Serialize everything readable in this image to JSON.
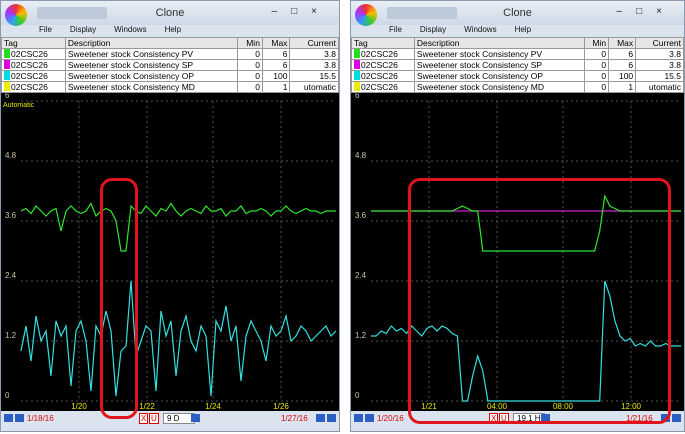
{
  "windows": [
    {
      "title": "Clone",
      "menu": [
        "File",
        "Display",
        "Windows",
        "Help"
      ],
      "table": {
        "header": [
          "Tag",
          "Description",
          "Min",
          "Max",
          "Current"
        ],
        "colors": [
          "#22dd22",
          "#dd00dd",
          "#00dddd",
          "#eeee00"
        ],
        "rows": [
          [
            "02CSC26",
            "Sweetener stock Consistency PV",
            "0",
            "6",
            "3.8"
          ],
          [
            "02CSC26",
            "Sweetener stock Consistency SP",
            "0",
            "6",
            "3.8"
          ],
          [
            "02CSC26",
            "Sweetener stock Consistency OP",
            "0",
            "100",
            "15.5"
          ],
          [
            "02CSC26",
            "Sweetener stock Consistency MD",
            "0",
            "1",
            "utomatic"
          ]
        ]
      },
      "chart_data": {
        "type": "line",
        "annotation": "Automatic",
        "ylim": [
          0,
          6
        ],
        "yticks": [
          0,
          1.2,
          2.4,
          3.6,
          4.8,
          6
        ],
        "xtick_labels": [
          "1/20",
          "1/22",
          "1/24",
          "1/26"
        ],
        "series": [
          {
            "color": "#2ee62e",
            "values": [
              3.8,
              3.85,
              3.75,
              3.9,
              3.8,
              3.7,
              3.8,
              3.85,
              3.4,
              3.8,
              3.9,
              3.8,
              3.75,
              3.8,
              3.95,
              3.7,
              3.8,
              3.85,
              3.8,
              3.6,
              3.0,
              3.0,
              3.9,
              3.8,
              3.75,
              3.9,
              3.8,
              3.7,
              3.85,
              3.8,
              3.95,
              3.8,
              3.7,
              3.8,
              3.85,
              3.8,
              3.75,
              3.9,
              3.8,
              3.8,
              3.85,
              3.7,
              3.8,
              3.8,
              3.9,
              3.75,
              3.8,
              3.8,
              3.85,
              3.8,
              3.7,
              3.8,
              3.8,
              3.9,
              3.8,
              3.75,
              3.8,
              3.85,
              3.8,
              3.8,
              3.75,
              3.8,
              3.8,
              3.8
            ]
          },
          {
            "color": "#33e0e0",
            "values": [
              1.0,
              1.5,
              0.8,
              1.7,
              1.2,
              1.4,
              0.5,
              1.6,
              1.3,
              1.5,
              0.3,
              1.4,
              1.6,
              1.2,
              0.2,
              1.5,
              1.3,
              1.8,
              1.4,
              0.1,
              1.0,
              1.1,
              2.4,
              0.9,
              1.2,
              1.5,
              1.4,
              0.2,
              1.8,
              1.3,
              1.6,
              0.5,
              1.4,
              1.7,
              1.2,
              1.0,
              1.5,
              1.3,
              0.1,
              1.6,
              1.4,
              1.9,
              1.2,
              1.5,
              0.4,
              1.3,
              1.6,
              1.4,
              1.2,
              0.8,
              1.5,
              1.3,
              1.4,
              1.7,
              1.2,
              1.3,
              1.5,
              1.4,
              1.2,
              1.3,
              1.4,
              1.5,
              1.3,
              1.4
            ]
          }
        ]
      },
      "footer": {
        "start": "1/18/16",
        "x": "X",
        "u": "U",
        "span": "9 D",
        "end": "1/27/16"
      }
    },
    {
      "title": "Clone",
      "menu": [
        "File",
        "Display",
        "Windows",
        "Help"
      ],
      "table": {
        "header": [
          "Tag",
          "Description",
          "Min",
          "Max",
          "Current"
        ],
        "colors": [
          "#22dd22",
          "#dd00dd",
          "#00dddd",
          "#eeee00"
        ],
        "rows": [
          [
            "02CSC26",
            "Sweetener stock Consistency PV",
            "0",
            "6",
            "3.8"
          ],
          [
            "02CSC26",
            "Sweetener stock Consistency SP",
            "0",
            "6",
            "3.8"
          ],
          [
            "02CSC26",
            "Sweetener stock Consistency OP",
            "0",
            "100",
            "15.5"
          ],
          [
            "02CSC26",
            "Sweetener stock Consistency MD",
            "0",
            "1",
            "utomatic"
          ]
        ]
      },
      "chart_data": {
        "type": "line",
        "ylim": [
          0,
          6
        ],
        "yticks": [
          0,
          1.2,
          2.4,
          3.6,
          4.8,
          6
        ],
        "xtick_labels": [
          "1/21",
          "04:00",
          "08:00",
          "12:00"
        ],
        "series": [
          {
            "color": "#cc22cc",
            "values": [
              3.8,
              3.8,
              3.8,
              3.8,
              3.8,
              3.8,
              3.8,
              3.8,
              3.8,
              3.8,
              3.8,
              3.8,
              3.8,
              3.8,
              3.8,
              3.8,
              3.8,
              3.8,
              3.8,
              3.8,
              3.8,
              3.8,
              3.8,
              3.8,
              3.8,
              3.8,
              3.8,
              3.8,
              3.8,
              3.8,
              3.8,
              3.8,
              3.8,
              3.8,
              3.8,
              3.8,
              3.8,
              3.8,
              3.8,
              3.8,
              3.8,
              3.8,
              3.8,
              3.8,
              3.8,
              3.8,
              3.8,
              3.8,
              3.8,
              3.8,
              3.8,
              3.8,
              3.8,
              3.8,
              3.8,
              3.8,
              3.8,
              3.8,
              3.8,
              3.8,
              3.8,
              3.8
            ]
          },
          {
            "color": "#2ee62e",
            "values": [
              3.8,
              3.8,
              3.8,
              3.8,
              3.8,
              3.8,
              3.8,
              3.8,
              3.8,
              3.8,
              3.8,
              3.8,
              3.8,
              3.8,
              3.8,
              3.8,
              3.8,
              3.85,
              3.9,
              3.85,
              3.8,
              3.8,
              3.0,
              3.0,
              3.0,
              3.0,
              3.0,
              3.0,
              3.0,
              3.0,
              3.0,
              3.0,
              3.0,
              3.0,
              3.0,
              3.0,
              3.0,
              3.0,
              3.0,
              3.0,
              3.0,
              3.0,
              3.0,
              3.0,
              3.0,
              3.4,
              4.1,
              3.9,
              3.85,
              3.8,
              3.8,
              3.8,
              3.8,
              3.8,
              3.8,
              3.8,
              3.8,
              3.8,
              3.8,
              3.8,
              3.8,
              3.8
            ]
          },
          {
            "color": "#33e0e0",
            "values": [
              1.3,
              1.3,
              1.4,
              1.35,
              1.5,
              1.4,
              1.45,
              1.35,
              1.5,
              1.4,
              1.3,
              1.45,
              1.5,
              1.4,
              1.5,
              1.45,
              1.35,
              1.3,
              0,
              0,
              0.5,
              0.9,
              0.6,
              0,
              0,
              0,
              0,
              0,
              0,
              0,
              0,
              0,
              0,
              0,
              0,
              0,
              0,
              0,
              0,
              0,
              0,
              0,
              0,
              0,
              0,
              0,
              2.4,
              2.1,
              1.6,
              1.3,
              1.2,
              1.25,
              1.1,
              1.15,
              1.1,
              1.2,
              1.1,
              1.1,
              1.15,
              1.1,
              1.1,
              1.1
            ]
          }
        ]
      },
      "footer": {
        "start": "1/20/16",
        "x": "X",
        "u": "U",
        "span": "19.1 H",
        "end": "1/21/16"
      }
    }
  ]
}
